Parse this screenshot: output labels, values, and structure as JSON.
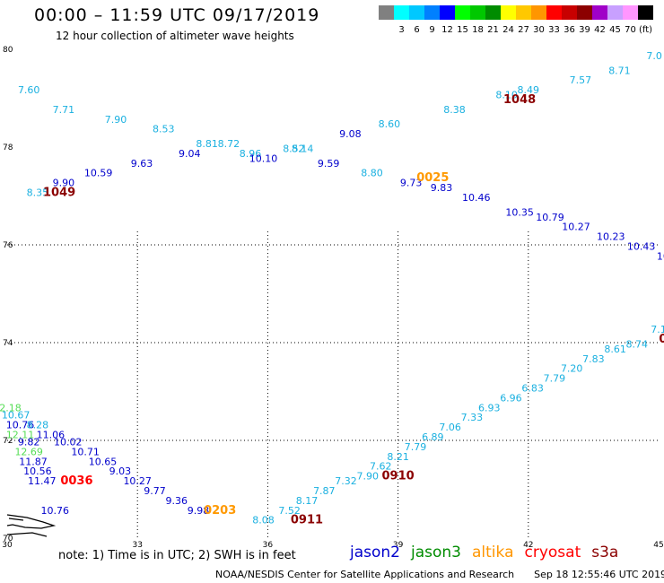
{
  "header": {
    "title": "00:00 – 11:59 UTC 09/17/2019",
    "subtitle": "12 hour collection of altimeter wave heights"
  },
  "color_scale": {
    "bins": [
      {
        "color": "#808080",
        "label": ""
      },
      {
        "color": "#00ffff",
        "label": "3"
      },
      {
        "color": "#00c8ff",
        "label": "6"
      },
      {
        "color": "#0080ff",
        "label": "9"
      },
      {
        "color": "#0000ff",
        "label": "12"
      },
      {
        "color": "#00ff00",
        "label": "15"
      },
      {
        "color": "#00c800",
        "label": "18"
      },
      {
        "color": "#008c00",
        "label": "21"
      },
      {
        "color": "#ffff00",
        "label": "24"
      },
      {
        "color": "#ffc800",
        "label": "27"
      },
      {
        "color": "#ff9600",
        "label": "30"
      },
      {
        "color": "#ff0000",
        "label": "33"
      },
      {
        "color": "#c80000",
        "label": "36"
      },
      {
        "color": "#8c0000",
        "label": "39"
      },
      {
        "color": "#a000c8",
        "label": "42"
      },
      {
        "color": "#c8a0ff",
        "label": "45"
      },
      {
        "color": "#ff96ff",
        "label": "70"
      },
      {
        "color": "#000000",
        "label": "(ft)"
      }
    ]
  },
  "axes": {
    "x_ticks": [
      "30",
      "33",
      "36",
      "39",
      "42",
      "45"
    ],
    "y_ticks": [
      "80",
      "78",
      "76",
      "74",
      "72",
      "70"
    ]
  },
  "readings": [
    {
      "v": "7.60",
      "lon": 30.5,
      "lat": 79.1,
      "c": "#1ab0e0"
    },
    {
      "v": "7.71",
      "lon": 31.3,
      "lat": 78.7,
      "c": "#1ab0e0"
    },
    {
      "v": "7.90",
      "lon": 32.5,
      "lat": 78.5,
      "c": "#1ab0e0"
    },
    {
      "v": "8.53",
      "lon": 33.6,
      "lat": 78.3,
      "c": "#1ab0e0"
    },
    {
      "v": "8.81",
      "lon": 34.6,
      "lat": 78.0,
      "c": "#1ab0e0"
    },
    {
      "v": "8.96",
      "lon": 35.6,
      "lat": 77.8,
      "c": "#1ab0e0"
    },
    {
      "v": "10.10",
      "lon": 35.9,
      "lat": 77.7,
      "c": "#0000cc"
    },
    {
      "v": "8.14",
      "lon": 36.8,
      "lat": 77.9,
      "c": "#1ab0e0"
    },
    {
      "v": "9.08",
      "lon": 37.9,
      "lat": 78.2,
      "c": "#0000cc"
    },
    {
      "v": "8.60",
      "lon": 38.8,
      "lat": 78.4,
      "c": "#1ab0e0"
    },
    {
      "v": "8.38",
      "lon": 40.3,
      "lat": 78.7,
      "c": "#1ab0e0"
    },
    {
      "v": "8.10",
      "lon": 41.5,
      "lat": 79.0,
      "c": "#1ab0e0"
    },
    {
      "v": "8.49",
      "lon": 42.0,
      "lat": 79.1,
      "c": "#1ab0e0"
    },
    {
      "v": "7.57",
      "lon": 43.2,
      "lat": 79.3,
      "c": "#1ab0e0"
    },
    {
      "v": "8.71",
      "lon": 44.1,
      "lat": 79.5,
      "c": "#1ab0e0"
    },
    {
      "v": "7.0",
      "lon": 44.9,
      "lat": 79.8,
      "c": "#1ab0e0"
    },
    {
      "v": "9.90",
      "lon": 31.3,
      "lat": 77.2,
      "c": "#0000cc"
    },
    {
      "v": "10.59",
      "lon": 32.1,
      "lat": 77.4,
      "c": "#0000cc"
    },
    {
      "v": "9.63",
      "lon": 33.1,
      "lat": 77.6,
      "c": "#0000cc"
    },
    {
      "v": "9.04",
      "lon": 34.2,
      "lat": 77.8,
      "c": "#0000cc"
    },
    {
      "v": "8.72",
      "lon": 35.1,
      "lat": 78.0,
      "c": "#1ab0e0"
    },
    {
      "v": "8.52",
      "lon": 36.6,
      "lat": 77.9,
      "c": "#1ab0e0"
    },
    {
      "v": "9.59",
      "lon": 37.4,
      "lat": 77.6,
      "c": "#0000cc"
    },
    {
      "v": "8.80",
      "lon": 38.4,
      "lat": 77.4,
      "c": "#1ab0e0"
    },
    {
      "v": "9.73",
      "lon": 39.3,
      "lat": 77.2,
      "c": "#0000cc"
    },
    {
      "v": "9.83",
      "lon": 40.0,
      "lat": 77.1,
      "c": "#0000cc"
    },
    {
      "v": "10.46",
      "lon": 40.8,
      "lat": 76.9,
      "c": "#0000cc"
    },
    {
      "v": "10.35",
      "lon": 41.8,
      "lat": 76.6,
      "c": "#0000cc"
    },
    {
      "v": "10.79",
      "lon": 42.5,
      "lat": 76.5,
      "c": "#0000cc"
    },
    {
      "v": "10.27",
      "lon": 43.1,
      "lat": 76.3,
      "c": "#0000cc"
    },
    {
      "v": "10.23",
      "lon": 43.9,
      "lat": 76.1,
      "c": "#0000cc"
    },
    {
      "v": "10.43",
      "lon": 44.6,
      "lat": 75.9,
      "c": "#0000cc"
    },
    {
      "v": "10",
      "lon": 45.1,
      "lat": 75.7,
      "c": "#0000cc"
    },
    {
      "v": "8.35",
      "lon": 30.7,
      "lat": 77.0,
      "c": "#1ab0e0"
    },
    {
      "v": "7.1",
      "lon": 45.0,
      "lat": 74.2,
      "c": "#1ab0e0"
    },
    {
      "v": "8.74",
      "lon": 44.5,
      "lat": 73.9,
      "c": "#1ab0e0"
    },
    {
      "v": "8.61",
      "lon": 44.0,
      "lat": 73.8,
      "c": "#1ab0e0"
    },
    {
      "v": "7.83",
      "lon": 43.5,
      "lat": 73.6,
      "c": "#1ab0e0"
    },
    {
      "v": "7.20",
      "lon": 43.0,
      "lat": 73.4,
      "c": "#1ab0e0"
    },
    {
      "v": "7.79",
      "lon": 42.6,
      "lat": 73.2,
      "c": "#1ab0e0"
    },
    {
      "v": "6.83",
      "lon": 42.1,
      "lat": 73.0,
      "c": "#1ab0e0"
    },
    {
      "v": "6.96",
      "lon": 41.6,
      "lat": 72.8,
      "c": "#1ab0e0"
    },
    {
      "v": "6.93",
      "lon": 41.1,
      "lat": 72.6,
      "c": "#1ab0e0"
    },
    {
      "v": "7.33",
      "lon": 40.7,
      "lat": 72.4,
      "c": "#1ab0e0"
    },
    {
      "v": "7.06",
      "lon": 40.2,
      "lat": 72.2,
      "c": "#1ab0e0"
    },
    {
      "v": "6.89",
      "lon": 39.8,
      "lat": 72.0,
      "c": "#1ab0e0"
    },
    {
      "v": "7.79",
      "lon": 39.4,
      "lat": 71.8,
      "c": "#1ab0e0"
    },
    {
      "v": "8.21",
      "lon": 39.0,
      "lat": 71.6,
      "c": "#1ab0e0"
    },
    {
      "v": "7.62",
      "lon": 38.6,
      "lat": 71.4,
      "c": "#1ab0e0"
    },
    {
      "v": "7.90",
      "lon": 38.3,
      "lat": 71.2,
      "c": "#1ab0e0"
    },
    {
      "v": "7.32",
      "lon": 37.8,
      "lat": 71.1,
      "c": "#1ab0e0"
    },
    {
      "v": "7.87",
      "lon": 37.3,
      "lat": 70.9,
      "c": "#1ab0e0"
    },
    {
      "v": "8.17",
      "lon": 36.9,
      "lat": 70.7,
      "c": "#1ab0e0"
    },
    {
      "v": "7.52",
      "lon": 36.5,
      "lat": 70.5,
      "c": "#1ab0e0"
    },
    {
      "v": "8.08",
      "lon": 35.9,
      "lat": 70.3,
      "c": "#1ab0e0"
    },
    {
      "v": "12.18",
      "lon": 30.0,
      "lat": 72.6,
      "c": "#55dd55"
    },
    {
      "v": "10.67",
      "lon": 30.2,
      "lat": 72.45,
      "c": "#1ab0e0"
    },
    {
      "v": "10.76",
      "lon": 30.3,
      "lat": 72.25,
      "c": "#0000cc"
    },
    {
      "v": "8.28",
      "lon": 30.7,
      "lat": 72.25,
      "c": "#1ab0e0"
    },
    {
      "v": "12.11",
      "lon": 30.3,
      "lat": 72.05,
      "c": "#55dd55"
    },
    {
      "v": "11.06",
      "lon": 31.0,
      "lat": 72.05,
      "c": "#0000cc"
    },
    {
      "v": "9.82",
      "lon": 30.5,
      "lat": 71.9,
      "c": "#0000cc"
    },
    {
      "v": "10.02",
      "lon": 31.4,
      "lat": 71.9,
      "c": "#0000cc"
    },
    {
      "v": "12.69",
      "lon": 30.5,
      "lat": 71.7,
      "c": "#55dd55"
    },
    {
      "v": "10.71",
      "lon": 31.8,
      "lat": 71.7,
      "c": "#0000cc"
    },
    {
      "v": "11.87",
      "lon": 30.6,
      "lat": 71.5,
      "c": "#0000cc"
    },
    {
      "v": "10.65",
      "lon": 32.2,
      "lat": 71.5,
      "c": "#0000cc"
    },
    {
      "v": "10.56",
      "lon": 30.7,
      "lat": 71.3,
      "c": "#0000cc"
    },
    {
      "v": "9.03",
      "lon": 32.6,
      "lat": 71.3,
      "c": "#0000cc"
    },
    {
      "v": "11.47",
      "lon": 30.8,
      "lat": 71.1,
      "c": "#0000cc"
    },
    {
      "v": "10.27",
      "lon": 33.0,
      "lat": 71.1,
      "c": "#0000cc"
    },
    {
      "v": "9.77",
      "lon": 33.4,
      "lat": 70.9,
      "c": "#0000cc"
    },
    {
      "v": "9.36",
      "lon": 33.9,
      "lat": 70.7,
      "c": "#0000cc"
    },
    {
      "v": "9.98",
      "lon": 34.4,
      "lat": 70.5,
      "c": "#0000cc"
    },
    {
      "v": "10.76",
      "lon": 31.1,
      "lat": 70.5,
      "c": "#0000cc"
    }
  ],
  "pass_times": [
    {
      "t": "1049",
      "lon": 31.2,
      "lat": 77.0,
      "c": "#8b0000"
    },
    {
      "t": "1048",
      "lon": 41.8,
      "lat": 78.9,
      "c": "#8b0000"
    },
    {
      "t": "0025",
      "lon": 39.8,
      "lat": 77.3,
      "c": "#ff9900"
    },
    {
      "t": "0036",
      "lon": 31.6,
      "lat": 71.1,
      "c": "#ff0000"
    },
    {
      "t": "0203",
      "lon": 34.9,
      "lat": 70.5,
      "c": "#ff9900"
    },
    {
      "t": "0911",
      "lon": 36.9,
      "lat": 70.3,
      "c": "#8b0000"
    },
    {
      "t": "0910",
      "lon": 39.0,
      "lat": 71.2,
      "c": "#8b0000"
    },
    {
      "t": "0",
      "lon": 45.1,
      "lat": 74.0,
      "c": "#8b0000"
    }
  ],
  "footer": {
    "note": "note: 1) Time is in UTC; 2) SWH is in feet",
    "satellites": [
      {
        "name": "jason2",
        "color": "#0000cc"
      },
      {
        "name": "jason3",
        "color": "#008c00"
      },
      {
        "name": "altika",
        "color": "#ff9600"
      },
      {
        "name": "cryosat",
        "color": "#ff0000"
      },
      {
        "name": "s3a",
        "color": "#8b0000"
      }
    ],
    "credit": "NOAA/NESDIS Center for Satellite Applications and Research",
    "timestamp": "Sep 18 12:55:46 UTC 2019"
  }
}
